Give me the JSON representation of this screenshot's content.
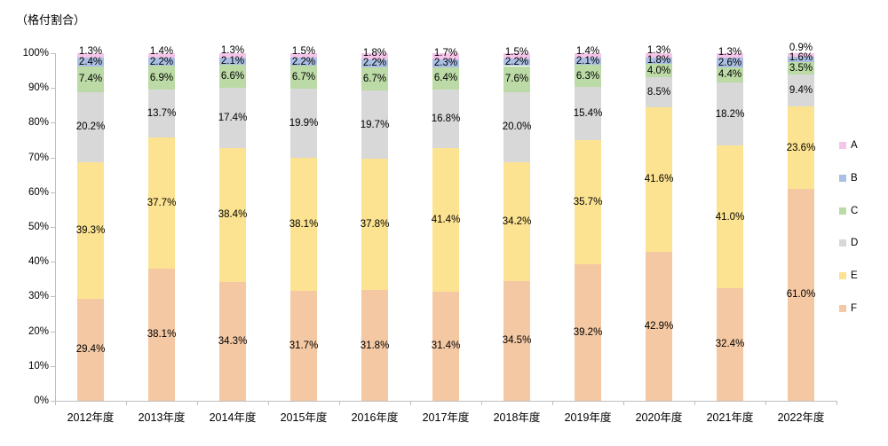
{
  "chart_data": {
    "type": "bar",
    "stacked": true,
    "orientation": "vertical",
    "title": "（格付割合）",
    "grid": false,
    "legend_position": "right",
    "categories": [
      "2012年度",
      "2013年度",
      "2014年度",
      "2015年度",
      "2016年度",
      "2017年度",
      "2018年度",
      "2019年度",
      "2020年度",
      "2021年度",
      "2022年度"
    ],
    "series": [
      {
        "name": "A",
        "color": "#f5c5e9",
        "values": [
          1.3,
          1.4,
          1.3,
          1.5,
          1.8,
          1.7,
          1.5,
          1.4,
          1.3,
          1.3,
          0.9
        ]
      },
      {
        "name": "B",
        "color": "#aabfe3",
        "values": [
          2.4,
          2.2,
          2.1,
          2.2,
          2.2,
          2.3,
          2.2,
          2.1,
          1.8,
          2.6,
          1.6
        ]
      },
      {
        "name": "C",
        "color": "#bcdaa6",
        "values": [
          7.4,
          6.9,
          6.6,
          6.7,
          6.7,
          6.4,
          7.6,
          6.3,
          4.0,
          4.4,
          3.5
        ]
      },
      {
        "name": "D",
        "color": "#d8d8d8",
        "values": [
          20.2,
          13.7,
          17.4,
          19.9,
          19.7,
          16.8,
          20.0,
          15.4,
          8.5,
          18.2,
          9.4
        ]
      },
      {
        "name": "E",
        "color": "#fce391",
        "values": [
          39.3,
          37.7,
          38.4,
          38.1,
          37.8,
          41.4,
          34.2,
          35.7,
          41.6,
          41.0,
          23.6
        ]
      },
      {
        "name": "F",
        "color": "#f4c8a3",
        "values": [
          29.4,
          38.1,
          34.3,
          31.7,
          31.8,
          31.4,
          34.5,
          39.2,
          42.9,
          32.4,
          61.0
        ]
      }
    ],
    "y_axis": {
      "min": 0,
      "max": 100,
      "tick_step": 10,
      "tick_labels": [
        "0%",
        "10%",
        "20%",
        "30%",
        "40%",
        "50%",
        "60%",
        "70%",
        "80%",
        "90%",
        "100%"
      ]
    },
    "label_format": "percent_one_decimal",
    "axis_color": "#bfbfbf",
    "text_color": "#000000"
  }
}
